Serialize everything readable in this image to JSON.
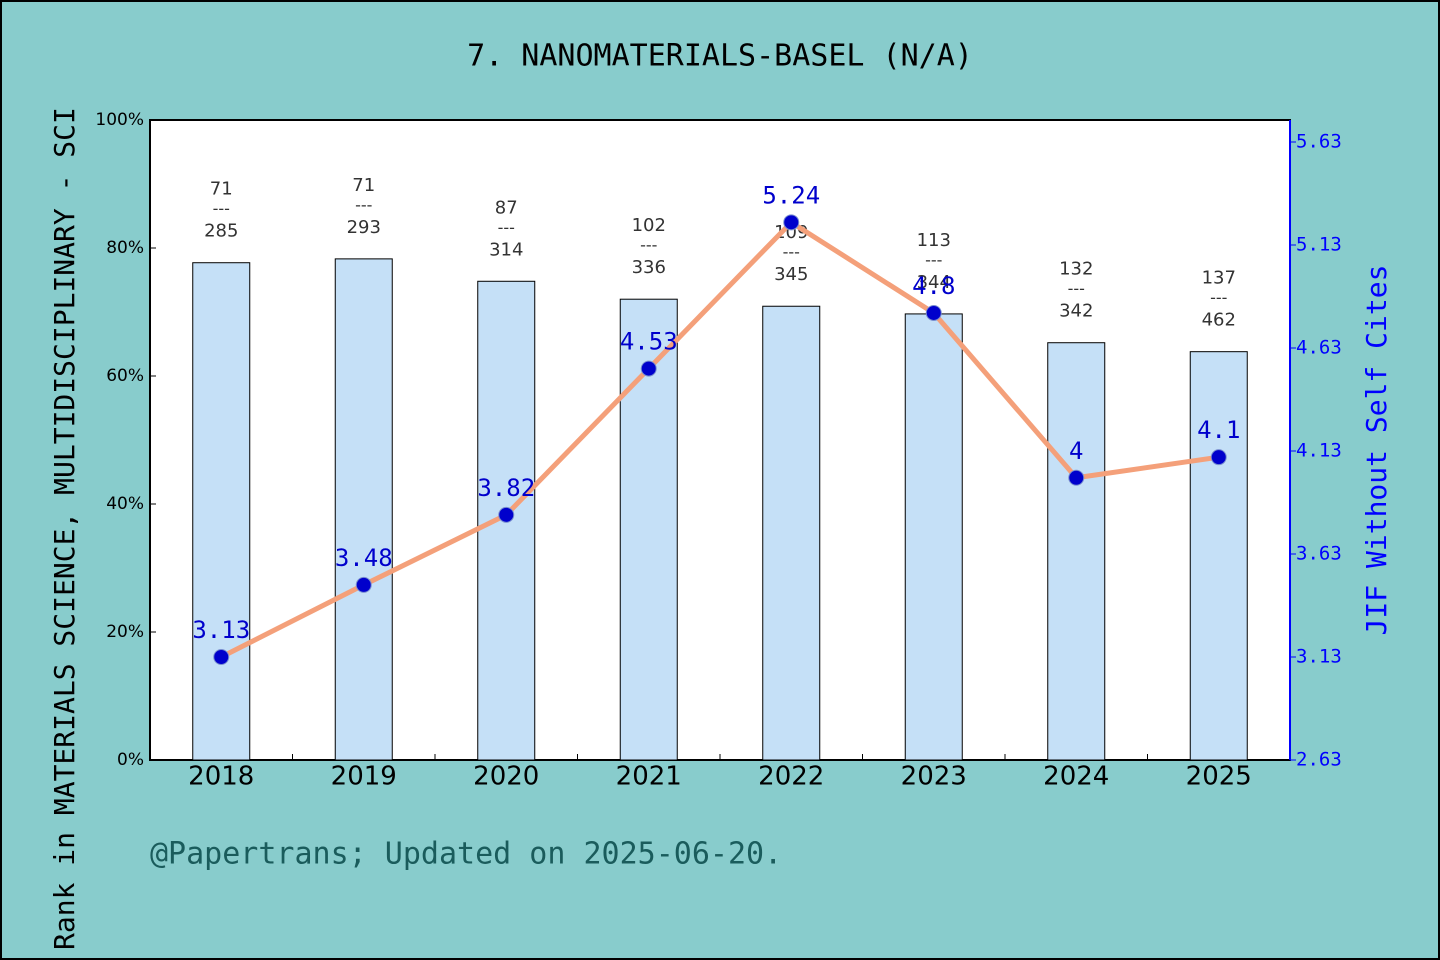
{
  "chart_data": {
    "type": "bar",
    "title": "7. NANOMATERIALS-BASEL (N/A)",
    "y_label": "Rank in MATERIALS SCIENCE, MULTIDISCIPLINARY - SCI",
    "y2_label": "JIF Without Self Cites",
    "footer": "@Papertrans; Updated on 2025-06-20.",
    "categories": [
      "2018",
      "2019",
      "2020",
      "2021",
      "2022",
      "2023",
      "2024",
      "2025"
    ],
    "series": [
      {
        "type": "bar",
        "color": "#c5e0f7",
        "values": [
          77.7,
          78.3,
          74.8,
          72.0,
          70.9,
          69.7,
          65.2,
          63.8
        ]
      },
      {
        "type": "line",
        "axis": "y2",
        "color": "#f4a07a",
        "marker_color": "#0000cc",
        "values": [
          3.13,
          3.48,
          3.82,
          4.53,
          5.24,
          4.8,
          4,
          4.1
        ]
      }
    ],
    "ranks": [
      71,
      71,
      87,
      102,
      109,
      113,
      132,
      137
    ],
    "totals": [
      285,
      293,
      314,
      336,
      345,
      344,
      342,
      462
    ],
    "rank_separator": "---",
    "ylim": [
      0,
      100
    ],
    "yticks": [
      {
        "value": 0,
        "label": "0%"
      },
      {
        "value": 20,
        "label": "20%"
      },
      {
        "value": 40,
        "label": "40%"
      },
      {
        "value": 60,
        "label": "60%"
      },
      {
        "value": 80,
        "label": "80%"
      },
      {
        "value": 100,
        "label": "100%"
      }
    ],
    "y2lim": [
      2.63,
      5.63
    ],
    "y2ticks": [
      2.63,
      3.13,
      3.63,
      4.13,
      4.63,
      5.13,
      5.63
    ]
  }
}
